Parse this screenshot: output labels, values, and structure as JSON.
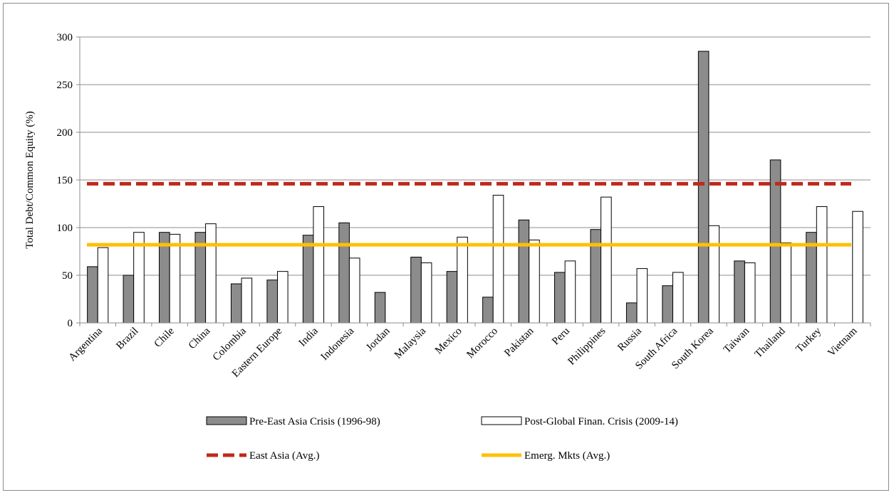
{
  "chart_data": {
    "type": "bar",
    "title": "",
    "xlabel": "",
    "ylabel": "Total Debt/Common Equity (%)",
    "ylim": [
      0,
      300
    ],
    "yticks": [
      0,
      50,
      100,
      150,
      200,
      250,
      300
    ],
    "grid": "horizontal",
    "legend_position": "bottom",
    "categories": [
      "Argentina",
      "Brazil",
      "Chile",
      "China",
      "Colombia",
      "Eastern Europe",
      "India",
      "Indonesia",
      "Jordan",
      "Malaysia",
      "Mexico",
      "Morocco",
      "Pakistan",
      "Peru",
      "Philippines",
      "Russia",
      "South Africa",
      "South Korea",
      "Taiwan",
      "Thailand",
      "Turkey",
      "Vietnam"
    ],
    "series": [
      {
        "name": "Pre-East Asia Crisis (1996-98)",
        "color": "#8c8c8c",
        "values": [
          59,
          50,
          95,
          95,
          41,
          45,
          92,
          105,
          32,
          69,
          54,
          27,
          108,
          53,
          98,
          21,
          39,
          285,
          65,
          171,
          95,
          null
        ]
      },
      {
        "name": "Post-Global Finan. Crisis (2009-14)",
        "color": "#ffffff",
        "values": [
          79,
          95,
          93,
          104,
          47,
          54,
          122,
          68,
          null,
          63,
          90,
          134,
          87,
          65,
          132,
          57,
          53,
          102,
          63,
          84,
          122,
          117
        ]
      }
    ],
    "reference_lines": [
      {
        "name": "East Asia (Avg.)",
        "value": 146,
        "color": "#c0281c",
        "style": "dashed"
      },
      {
        "name": "Emerg. Mkts (Avg.)",
        "value": 82,
        "color": "#ffc000",
        "style": "solid"
      }
    ]
  }
}
